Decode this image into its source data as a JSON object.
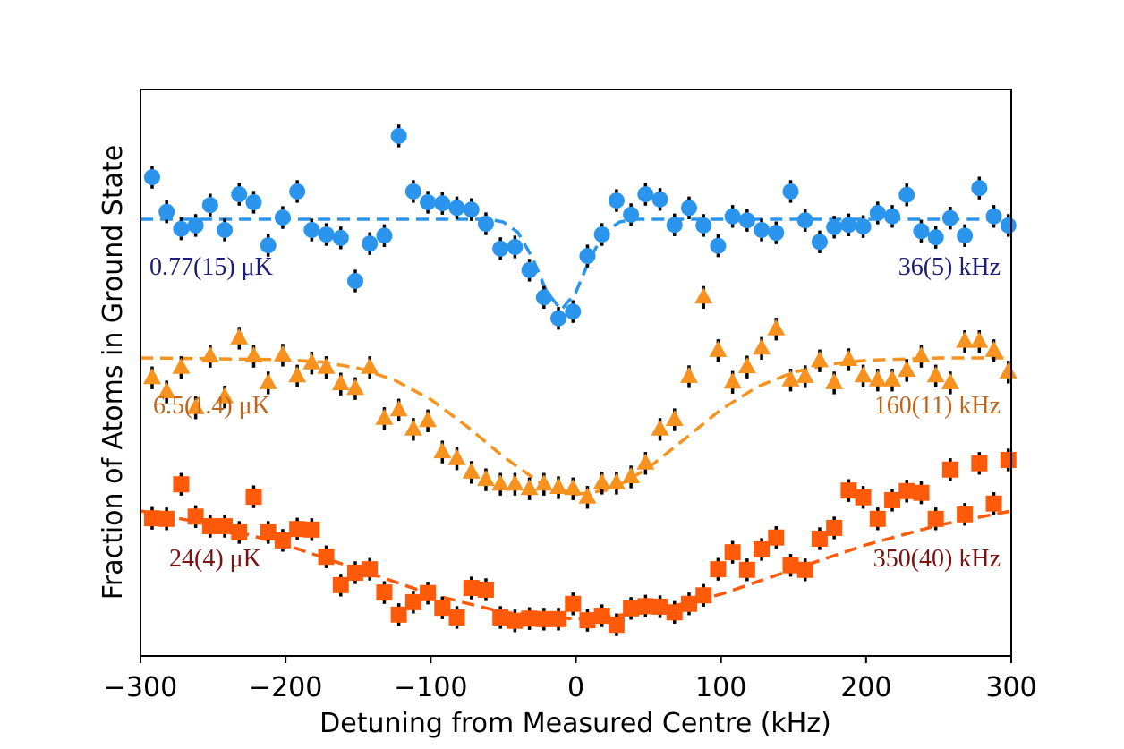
{
  "chart_data": {
    "type": "scatter",
    "xlabel": "Detuning from Measured Centre (kHz)",
    "ylabel": "Fraction of Atoms in Ground State",
    "xlim": [
      -300,
      300
    ],
    "xticks": [
      {
        "value": -300,
        "label": "−300"
      },
      {
        "value": -200,
        "label": "−200"
      },
      {
        "value": -100,
        "label": "−100"
      },
      0,
      100,
      200,
      300
    ],
    "ylim": [
      0,
      1
    ],
    "x": [
      -292,
      -282,
      -272,
      -262,
      -252,
      -242,
      -232,
      -222,
      -212,
      -202,
      -192,
      -182,
      -172,
      -162,
      -152,
      -142,
      -132,
      -122,
      -112,
      -102,
      -92,
      -82,
      -72,
      -62,
      -52,
      -42,
      -32,
      -22,
      -12,
      -2,
      8,
      18,
      28,
      38,
      48,
      58,
      68,
      78,
      88,
      98,
      108,
      118,
      128,
      138,
      148,
      158,
      168,
      178,
      188,
      198,
      208,
      218,
      228,
      238,
      248,
      258,
      268,
      278,
      288,
      298
    ],
    "series": [
      {
        "color": "#2b95ee",
        "marker": "circle",
        "label_color": "#1c1c7a",
        "error": 0.02,
        "labels": [
          "0.77(15) μK",
          "36(5) kHz"
        ],
        "values": [
          0.845,
          0.784,
          0.754,
          0.76,
          0.796,
          0.752,
          0.815,
          0.801,
          0.725,
          0.774,
          0.82,
          0.752,
          0.744,
          0.738,
          0.662,
          0.728,
          0.742,
          0.918,
          0.82,
          0.801,
          0.799,
          0.791,
          0.788,
          0.763,
          0.719,
          0.722,
          0.681,
          0.633,
          0.596,
          0.608,
          0.706,
          0.744,
          0.804,
          0.779,
          0.815,
          0.806,
          0.761,
          0.791,
          0.76,
          0.724,
          0.776,
          0.769,
          0.752,
          0.747,
          0.82,
          0.769,
          0.731,
          0.757,
          0.761,
          0.758,
          0.782,
          0.776,
          0.814,
          0.75,
          0.739,
          0.773,
          0.742,
          0.826,
          0.776,
          0.76
        ],
        "fit": {
          "x": [
            -300,
            -60,
            -50,
            -40,
            -30,
            -20,
            -10,
            0,
            10,
            20,
            30,
            40,
            300
          ],
          "values": [
            0.771,
            0.771,
            0.766,
            0.748,
            0.703,
            0.642,
            0.611,
            0.642,
            0.703,
            0.748,
            0.766,
            0.771,
            0.771
          ]
        }
      },
      {
        "color": "#f7921e",
        "marker": "triangle",
        "label_color": "#c0661c",
        "error": 0.02,
        "labels": [
          "6.5(1.4) μK",
          "160(11) kHz"
        ],
        "values": [
          0.491,
          0.466,
          0.509,
          0.438,
          0.529,
          0.457,
          0.561,
          0.529,
          0.482,
          0.531,
          0.494,
          0.517,
          0.509,
          0.48,
          0.472,
          0.509,
          0.419,
          0.434,
          0.4,
          0.415,
          0.36,
          0.348,
          0.324,
          0.311,
          0.303,
          0.303,
          0.295,
          0.303,
          0.297,
          0.295,
          0.28,
          0.305,
          0.305,
          0.316,
          0.34,
          0.4,
          0.417,
          0.493,
          0.633,
          0.539,
          0.483,
          0.51,
          0.543,
          0.577,
          0.487,
          0.493,
          0.521,
          0.482,
          0.523,
          0.494,
          0.487,
          0.487,
          0.504,
          0.529,
          0.494,
          0.482,
          0.555,
          0.555,
          0.539,
          0.501
        ],
        "fit": {
          "x": [
            -300,
            -200,
            -175,
            -150,
            -125,
            -100,
            -75,
            -50,
            -25,
            0,
            25,
            50,
            75,
            100,
            125,
            150,
            175,
            200,
            250,
            300
          ],
          "values": [
            0.526,
            0.523,
            0.519,
            0.508,
            0.487,
            0.453,
            0.405,
            0.352,
            0.306,
            0.285,
            0.294,
            0.332,
            0.383,
            0.435,
            0.475,
            0.501,
            0.515,
            0.522,
            0.526,
            0.526
          ]
        }
      },
      {
        "color": "#ff5a0a",
        "marker": "square",
        "label_color": "#7a1212",
        "error": 0.02,
        "labels": [
          "24(4) μK",
          "350(40) kHz"
        ],
        "values": [
          0.243,
          0.242,
          0.303,
          0.246,
          0.229,
          0.229,
          0.218,
          0.281,
          0.218,
          0.204,
          0.224,
          0.223,
          0.175,
          0.125,
          0.147,
          0.153,
          0.112,
          0.073,
          0.095,
          0.111,
          0.085,
          0.068,
          0.12,
          0.117,
          0.068,
          0.062,
          0.066,
          0.065,
          0.065,
          0.092,
          0.063,
          0.071,
          0.055,
          0.084,
          0.088,
          0.087,
          0.077,
          0.092,
          0.107,
          0.153,
          0.183,
          0.152,
          0.188,
          0.209,
          0.16,
          0.152,
          0.207,
          0.226,
          0.292,
          0.28,
          0.242,
          0.275,
          0.291,
          0.288,
          0.242,
          0.329,
          0.25,
          0.34,
          0.269,
          0.346
        ],
        "fit": {
          "x": [
            -300,
            -250,
            -200,
            -150,
            -100,
            -50,
            0,
            50,
            100,
            150,
            200,
            250,
            300
          ],
          "values": [
            0.256,
            0.231,
            0.196,
            0.153,
            0.109,
            0.077,
            0.065,
            0.077,
            0.109,
            0.153,
            0.196,
            0.231,
            0.256
          ]
        }
      }
    ]
  }
}
